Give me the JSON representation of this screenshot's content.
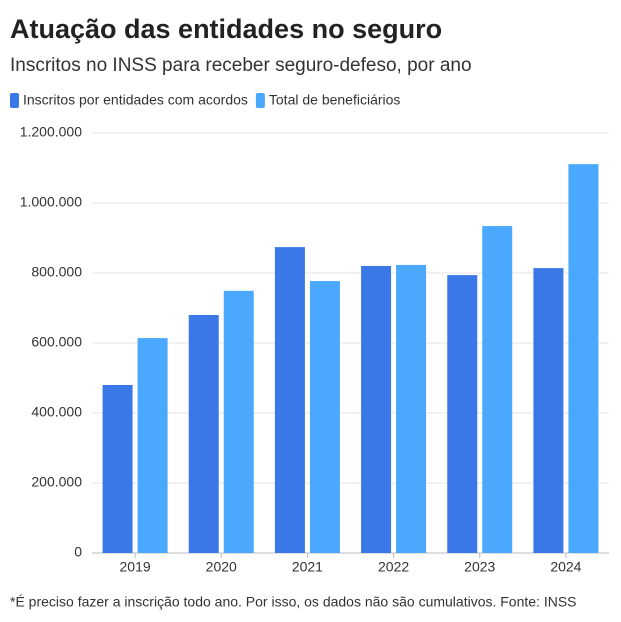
{
  "chart_data": {
    "type": "bar",
    "title": "Atuação das entidades no seguro",
    "subtitle": "Inscritos no INSS para receber seguro-defeso, por ano",
    "categories": [
      "2019",
      "2020",
      "2021",
      "2022",
      "2023",
      "2024"
    ],
    "series": [
      {
        "name": "Inscritos por entidades com acordos",
        "color": "#3b78e7",
        "values": [
          480000,
          680000,
          874000,
          820000,
          794000,
          814000
        ]
      },
      {
        "name": "Total de beneficiários",
        "color": "#4aa8ff",
        "values": [
          614000,
          749000,
          777000,
          823000,
          934000,
          1111000
        ]
      }
    ],
    "ylim": [
      0,
      1200000
    ],
    "yticks": [
      0,
      {
        "value": 200000,
        "label": "200.000"
      },
      {
        "value": 400000,
        "label": "400.000"
      },
      {
        "value": 600000,
        "label": "600.000"
      },
      {
        "value": 800000,
        "label": "800.000"
      },
      {
        "value": 1000000,
        "label": "1.000.000"
      },
      {
        "value": 1200000,
        "label": "1.200.000"
      }
    ],
    "grid": true,
    "footnote": "*É preciso fazer a inscrição todo ano. Por isso, os dados não são cumulativos. Fonte: INSS"
  }
}
